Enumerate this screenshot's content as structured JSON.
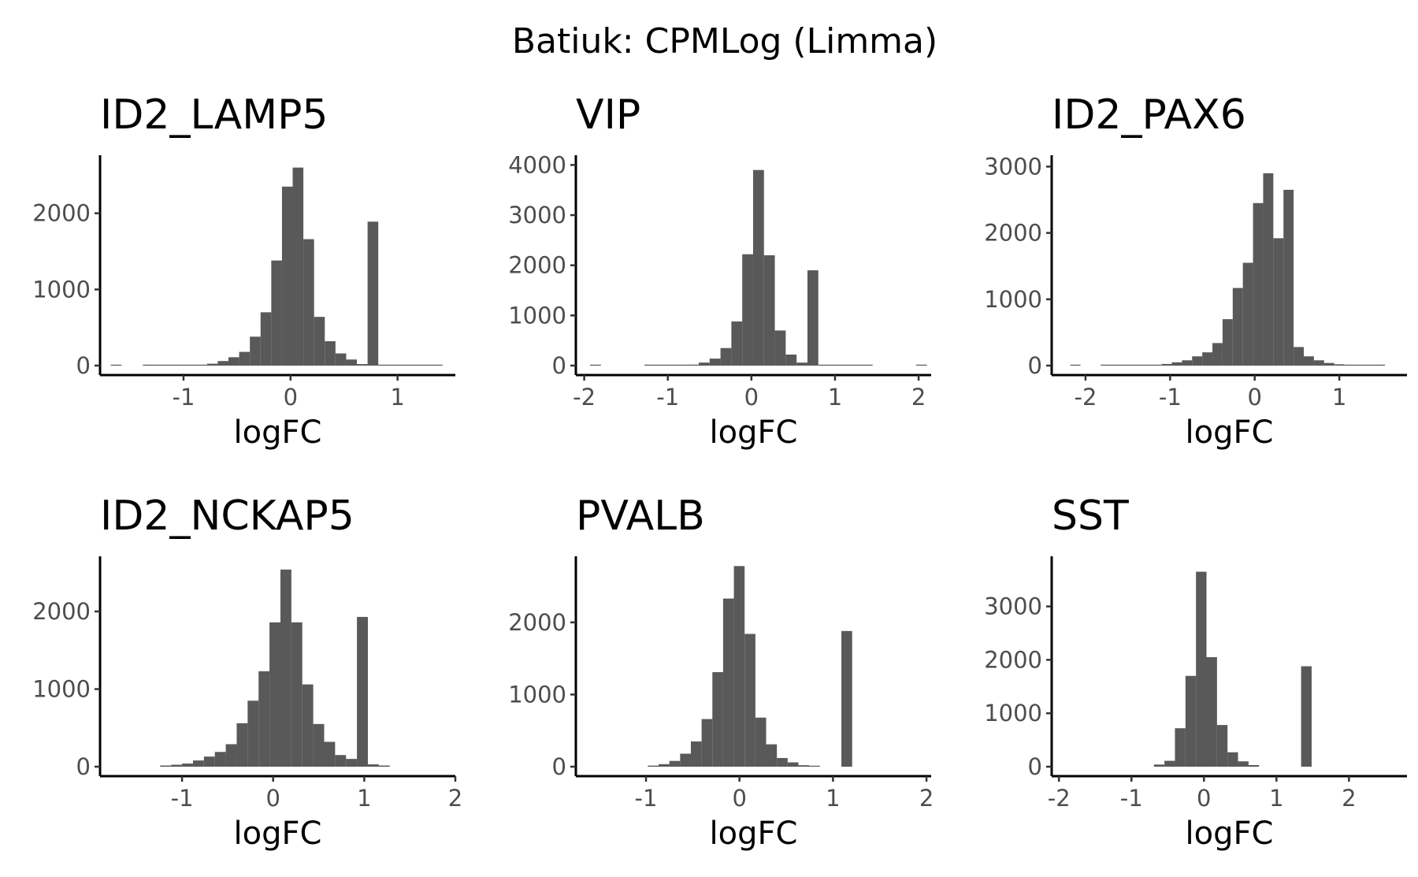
{
  "title": "Batiuk: CPMLog (Limma)",
  "colors": {
    "bar": "#595959",
    "axis": "#000000",
    "tick_label": "#4d4d4d"
  },
  "chart_data": [
    {
      "type": "bar",
      "title": "ID2_LAMP5",
      "xlabel": "logFC",
      "ylabel": "",
      "xlim": [
        -1.78,
        1.54
      ],
      "ylim": [
        0,
        2700
      ],
      "xticks": [
        -1,
        0,
        1
      ],
      "xtick_labels": [
        "-1",
        "0",
        "1"
      ],
      "yticks": [
        0,
        1000,
        2000
      ],
      "ytick_labels": [
        "0",
        "1000",
        "2000"
      ],
      "bin_width": 0.1,
      "bin_starts": [
        -1.68,
        -1.38,
        -1.28,
        -1.18,
        -1.08,
        -0.98,
        -0.88,
        -0.78,
        -0.68,
        -0.58,
        -0.48,
        -0.38,
        -0.28,
        -0.18,
        -0.08,
        0.02,
        0.12,
        0.22,
        0.32,
        0.42,
        0.52,
        0.62,
        0.72,
        0.82,
        0.92,
        1.02,
        1.12,
        1.22,
        1.32
      ],
      "counts": [
        2,
        2,
        3,
        4,
        5,
        6,
        10,
        25,
        60,
        110,
        180,
        380,
        700,
        1380,
        2350,
        2600,
        1660,
        640,
        320,
        160,
        80,
        20,
        1890,
        4,
        3,
        3,
        2,
        2,
        2
      ]
    },
    {
      "type": "bar",
      "title": "VIP",
      "xlabel": "logFC",
      "ylabel": "",
      "xlim": [
        -2.1,
        2.15
      ],
      "ylim": [
        0,
        4100
      ],
      "xticks": [
        -2,
        -1,
        0,
        1,
        2
      ],
      "xtick_labels": [
        "-2",
        "-1",
        "0",
        "1",
        "2"
      ],
      "yticks": [
        0,
        1000,
        2000,
        3000,
        4000
      ],
      "ytick_labels": [
        "0",
        "1000",
        "2000",
        "3000",
        "4000"
      ],
      "bin_width": 0.13,
      "bin_starts": [
        -1.93,
        -1.28,
        -1.15,
        -1.02,
        -0.89,
        -0.76,
        -0.63,
        -0.5,
        -0.37,
        -0.24,
        -0.11,
        0.02,
        0.15,
        0.28,
        0.41,
        0.54,
        0.67,
        0.8,
        0.93,
        1.06,
        1.19,
        1.32,
        1.97
      ],
      "counts": [
        4,
        3,
        4,
        6,
        10,
        20,
        60,
        140,
        350,
        880,
        2220,
        3900,
        2200,
        700,
        220,
        60,
        1900,
        8,
        5,
        4,
        3,
        2,
        3
      ]
    },
    {
      "type": "bar",
      "title": "ID2_PAX6",
      "xlabel": "logFC",
      "ylabel": "",
      "xlim": [
        -2.4,
        1.8
      ],
      "ylim": [
        0,
        3100
      ],
      "xticks": [
        -2,
        -1,
        0,
        1
      ],
      "xtick_labels": [
        "-2",
        "-1",
        "0",
        "1"
      ],
      "yticks": [
        0,
        1000,
        2000,
        3000
      ],
      "ytick_labels": [
        "0",
        "1000",
        "2000",
        "3000"
      ],
      "bin_width": 0.12,
      "bin_starts": [
        -2.18,
        -1.82,
        -1.7,
        -1.58,
        -1.46,
        -1.34,
        -1.22,
        -1.1,
        -0.98,
        -0.86,
        -0.74,
        -0.62,
        -0.5,
        -0.38,
        -0.26,
        -0.14,
        -0.02,
        0.1,
        0.22,
        0.34,
        0.46,
        0.58,
        0.7,
        0.82,
        0.94,
        1.06,
        1.18,
        1.3,
        1.42
      ],
      "counts": [
        3,
        3,
        3,
        3,
        4,
        6,
        10,
        25,
        50,
        80,
        140,
        200,
        340,
        700,
        1170,
        1550,
        2450,
        2900,
        1920,
        2650,
        280,
        140,
        80,
        40,
        20,
        10,
        6,
        4,
        3
      ]
    },
    {
      "type": "bar",
      "title": "ID2_NCKAP5",
      "xlabel": "logFC",
      "ylabel": "",
      "xlim": [
        -1.9,
        2.0
      ],
      "ylim": [
        0,
        2650
      ],
      "xticks": [
        -1,
        0,
        1,
        2
      ],
      "xtick_labels": [
        "-1",
        "0",
        "1",
        "2"
      ],
      "yticks": [
        0,
        1000,
        2000
      ],
      "ytick_labels": [
        "0",
        "1000",
        "2000"
      ],
      "bin_width": 0.12,
      "bin_starts": [
        -1.24,
        -1.12,
        -1.0,
        -0.88,
        -0.76,
        -0.64,
        -0.52,
        -0.4,
        -0.28,
        -0.16,
        -0.04,
        0.08,
        0.2,
        0.32,
        0.44,
        0.56,
        0.68,
        0.8,
        0.92,
        1.04,
        1.16
      ],
      "counts": [
        15,
        25,
        40,
        80,
        130,
        190,
        290,
        560,
        850,
        1230,
        1860,
        2540,
        1860,
        1060,
        550,
        320,
        150,
        100,
        1930,
        30,
        15
      ]
    },
    {
      "type": "bar",
      "title": "PVALB",
      "xlabel": "logFC",
      "ylabel": "",
      "xlim": [
        -1.75,
        2.05
      ],
      "ylim": [
        0,
        2850
      ],
      "xticks": [
        -1,
        0,
        1,
        2
      ],
      "xtick_labels": [
        "-1",
        "0",
        "1",
        "2"
      ],
      "yticks": [
        0,
        1000,
        2000
      ],
      "ytick_labels": [
        "0",
        "1000",
        "2000"
      ],
      "bin_width": 0.115,
      "bin_starts": [
        -0.98,
        -0.865,
        -0.75,
        -0.635,
        -0.52,
        -0.405,
        -0.29,
        -0.175,
        -0.06,
        0.055,
        0.17,
        0.285,
        0.4,
        0.515,
        0.63,
        0.745,
        1.09
      ],
      "counts": [
        15,
        35,
        80,
        180,
        350,
        660,
        1310,
        2330,
        2780,
        1840,
        680,
        310,
        120,
        60,
        20,
        8,
        1880
      ]
    },
    {
      "type": "bar",
      "title": "SST",
      "xlabel": "logFC",
      "ylabel": "",
      "xlim": [
        -2.1,
        2.8
      ],
      "ylim": [
        0,
        3850
      ],
      "xticks": [
        -2,
        -1,
        0,
        1,
        2
      ],
      "xtick_labels": [
        "-2",
        "-1",
        "0",
        "1",
        "2"
      ],
      "yticks": [
        0,
        1000,
        2000,
        3000
      ],
      "ytick_labels": [
        "0",
        "1000",
        "2000",
        "3000"
      ],
      "bin_width": 0.145,
      "bin_starts": [
        -0.69,
        -0.545,
        -0.4,
        -0.255,
        -0.11,
        0.035,
        0.18,
        0.325,
        0.47,
        0.615,
        1.34
      ],
      "counts": [
        40,
        110,
        720,
        1700,
        3650,
        2050,
        780,
        270,
        100,
        30,
        1880
      ]
    }
  ]
}
